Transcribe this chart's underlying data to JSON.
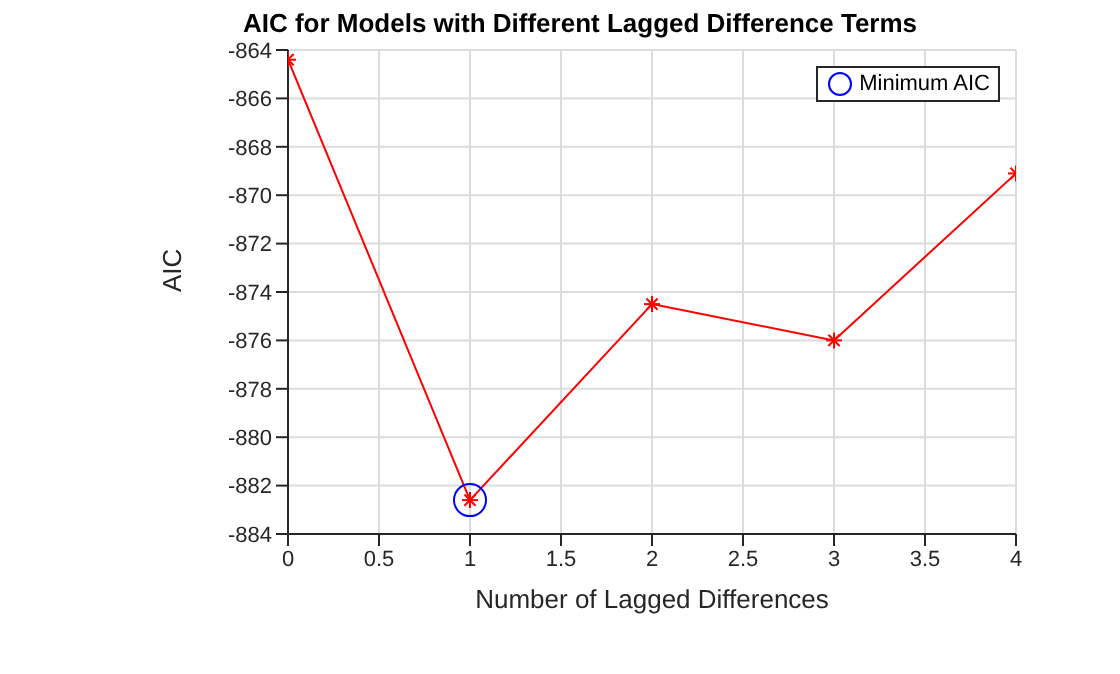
{
  "chart_data": {
    "type": "line",
    "title": "AIC for Models with Different Lagged Difference Terms",
    "xlabel": "Number of Lagged Differences",
    "ylabel": "AIC",
    "series": [
      {
        "color": "#ff0000",
        "x": [
          0,
          1,
          2,
          3,
          4
        ],
        "values": [
          -864.4,
          -882.6,
          -874.5,
          -876.0,
          -869.1
        ],
        "marker": "cross"
      },
      {
        "type": "scatter",
        "name": "Minimum AIC",
        "color": "#0000ff",
        "x": [
          1
        ],
        "values": [
          -882.6
        ],
        "marker": "circle"
      }
    ],
    "xlim": [
      0,
      4
    ],
    "xticks": [
      0,
      0.5,
      1,
      1.5,
      2,
      2.5,
      3,
      3.5,
      4
    ],
    "ylim": [
      -884,
      -864
    ],
    "yticks": [
      -884,
      -882,
      -880,
      -878,
      -876,
      -874,
      -872,
      -870,
      -868,
      -866,
      -864
    ],
    "grid": true,
    "legend": "top right",
    "line_style": "solid"
  }
}
